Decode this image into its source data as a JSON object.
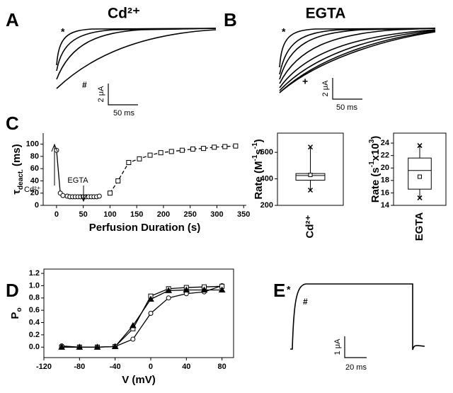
{
  "panel_labels": [
    "A",
    "B",
    "C",
    "D",
    "E"
  ],
  "traces": [
    {
      "title": "Cd²⁺",
      "markers": [
        "*",
        "#"
      ],
      "scale_y": "2 μA",
      "scale_x": "50 ms"
    },
    {
      "title": "EGTA",
      "markers": [
        "*",
        "+"
      ],
      "scale_y": "2 μA",
      "scale_x": "50 ms"
    },
    {
      "markers": [
        "*",
        "#"
      ],
      "scale_y": "1 μA",
      "scale_x": "20 ms"
    }
  ],
  "chart_data": [
    {
      "type": "scatter",
      "xlabel": "Perfusion Duration (s)",
      "ylabel": [
        "τ",
        "deact.",
        "(ms)"
      ],
      "ylabel_script": "sub",
      "xlim": [
        -25,
        355
      ],
      "ylim": [
        0,
        118
      ],
      "xticks": [
        0,
        50,
        100,
        150,
        200,
        250,
        300,
        350
      ],
      "yticks": [
        0,
        20,
        40,
        60,
        80,
        100
      ],
      "frame": false,
      "annotations": [
        "Cd²⁺",
        "EGTA"
      ],
      "series": [
        {
          "marker": "circle",
          "line": "solid",
          "filled": false,
          "x": [
            0,
            7,
            12,
            20,
            25,
            30,
            35,
            40,
            45,
            50,
            55,
            60,
            65,
            70,
            75,
            80
          ],
          "values": [
            90,
            20,
            16,
            15,
            14,
            14,
            14,
            14,
            14,
            14,
            14,
            14,
            14,
            14,
            14,
            15
          ]
        },
        {
          "marker": "square",
          "line": "dashed",
          "filled": false,
          "x": [
            100,
            115,
            135,
            155,
            175,
            195,
            215,
            235,
            255,
            275,
            295,
            315,
            335
          ],
          "values": [
            20,
            40,
            70,
            76,
            82,
            86,
            88,
            90,
            92,
            93,
            95,
            96,
            97
          ]
        }
      ]
    },
    {
      "type": "box",
      "ylabel": [
        "Rate (M",
        "-1",
        "s",
        "-1",
        ")"
      ],
      "ylabel_script": "sup",
      "categories": [
        "Cd²⁺"
      ],
      "ylim": [
        200,
        745
      ],
      "yticks": [
        200,
        400,
        600
      ],
      "min": 315,
      "q1": 390,
      "median": 425,
      "q3": 440,
      "max": 640,
      "mean": 430
    },
    {
      "type": "box",
      "ylabel": [
        "Rate (s",
        "-1",
        "x10",
        "3",
        ")"
      ],
      "ylabel_script": "sup",
      "categories": [
        "EGTA"
      ],
      "ylim": [
        14,
        25.6
      ],
      "yticks": [
        14,
        16,
        18,
        20,
        22,
        24
      ],
      "min": 15.2,
      "q1": 16.6,
      "median": 19.6,
      "q3": 21.6,
      "max": 23.6,
      "mean": 18.6
    },
    {
      "type": "scatter",
      "xlabel": "V (mV)",
      "ylabel": [
        "P",
        "o"
      ],
      "ylabel_script": "sub",
      "xlim": [
        -120,
        93
      ],
      "ylim": [
        -0.17,
        1.27
      ],
      "xticks": [
        -120,
        -80,
        -40,
        0,
        40,
        80
      ],
      "yticks": [
        {
          "value": 0,
          "label": "0.0"
        },
        0.2,
        0.4,
        0.6,
        0.8,
        {
          "value": 1,
          "label": "1.0"
        },
        1.2
      ],
      "frame": true,
      "series": [
        {
          "marker": "circle",
          "line": "solid",
          "filled": false,
          "x": [
            -100,
            -80,
            -60,
            -40,
            -20,
            0,
            20,
            40,
            60,
            80
          ],
          "values": [
            0.02,
            0,
            0,
            0.01,
            0.13,
            0.55,
            0.8,
            0.87,
            0.9,
            1.0
          ]
        },
        {
          "marker": "square",
          "line": "solid",
          "filled": false,
          "x": [
            -100,
            -80,
            -60,
            -40,
            -20,
            0,
            20,
            40,
            60,
            80
          ],
          "values": [
            0,
            0,
            0,
            0.01,
            0.3,
            0.83,
            0.95,
            0.97,
            0.98,
            0.99
          ]
        },
        {
          "marker": "triangle",
          "line": "solid",
          "filled": true,
          "x": [
            -100,
            -80,
            -60,
            -40,
            -20,
            0,
            20,
            40,
            60,
            80
          ],
          "values": [
            0,
            0,
            0,
            0.01,
            0.35,
            0.78,
            0.92,
            0.93,
            0.93,
            0.93
          ]
        }
      ]
    }
  ]
}
